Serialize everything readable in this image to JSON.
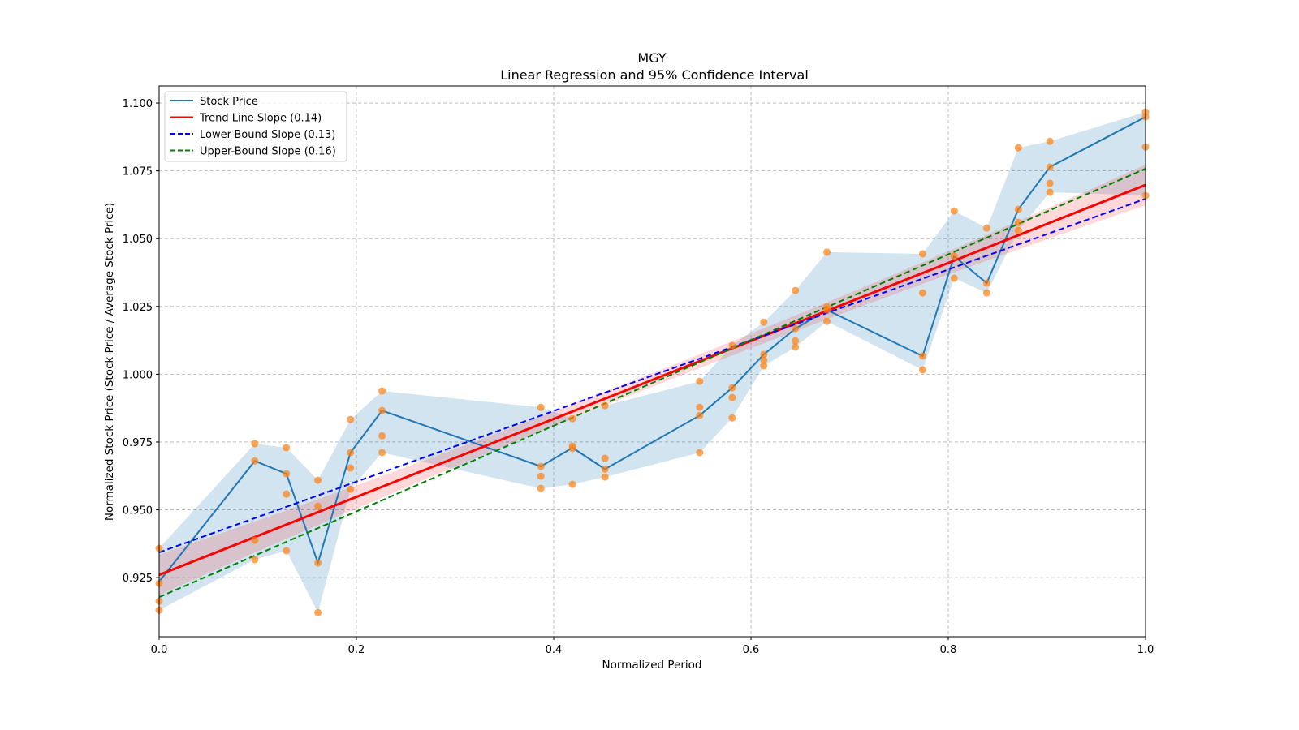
{
  "chart_data": {
    "type": "line",
    "title": "MGY",
    "subtitle": "Linear Regression and 95% Confidence Interval",
    "xlabel": "Normalized Period",
    "ylabel": "Normalized Stock Price (Stock Price / Average Stock Price)",
    "xlim": [
      0,
      1
    ],
    "ylim": [
      0.9032,
      1.1063
    ],
    "xticks": [
      0,
      0.2,
      0.4,
      0.6,
      0.8,
      1.0
    ],
    "xtick_labels": [
      "0.0",
      "0.2",
      "0.4",
      "0.6",
      "0.8",
      "1.0"
    ],
    "yticks": [
      0.925,
      0.95,
      0.975,
      1.0,
      1.025,
      1.05,
      1.075,
      1.1
    ],
    "ytick_labels": [
      "0.925",
      "0.950",
      "0.975",
      "1.000",
      "1.025",
      "1.050",
      "1.075",
      "1.100"
    ],
    "grid": true,
    "legend_position": "top-left",
    "legend": [
      {
        "label": "Stock Price",
        "color": "#1f77b4",
        "style": "solid"
      },
      {
        "label": "Trend Line Slope (0.14)",
        "color": "#ff0000",
        "style": "solid"
      },
      {
        "label": "Lower-Bound Slope (0.13)",
        "color": "#0000ff",
        "style": "dashed"
      },
      {
        "label": "Upper-Bound Slope (0.16)",
        "color": "#008000",
        "style": "dashed"
      }
    ],
    "stock_price": {
      "x": [
        0,
        0.097,
        0.129,
        0.161,
        0.194,
        0.226,
        0.387,
        0.419,
        0.452,
        0.548,
        0.581,
        0.613,
        0.645,
        0.677,
        0.774,
        0.806,
        0.839,
        0.871,
        0.903,
        1.0
      ],
      "y": [
        0.9235,
        0.968,
        0.9633,
        0.9304,
        0.9711,
        0.9866,
        0.966,
        0.9729,
        0.965,
        0.9848,
        0.995,
        1.0073,
        1.0168,
        1.0237,
        1.0067,
        1.0435,
        1.0336,
        1.0608,
        1.0764,
        1.0949
      ]
    },
    "scatter": [
      {
        "x": 0,
        "y": [
          0.9358,
          0.9229,
          0.9163,
          0.913
        ]
      },
      {
        "x": 0.097,
        "y": [
          0.9744,
          0.968,
          0.9388,
          0.9316
        ]
      },
      {
        "x": 0.129,
        "y": [
          0.9729,
          0.9633,
          0.9558,
          0.9349
        ]
      },
      {
        "x": 0.161,
        "y": [
          0.9609,
          0.9513,
          0.9304,
          0.9121
        ]
      },
      {
        "x": 0.194,
        "y": [
          0.9833,
          0.9711,
          0.9654,
          0.9576
        ]
      },
      {
        "x": 0.226,
        "y": [
          0.9938,
          0.9866,
          0.9773,
          0.9711
        ]
      },
      {
        "x": 0.387,
        "y": [
          0.9878,
          0.966,
          0.9624,
          0.9579
        ]
      },
      {
        "x": 0.419,
        "y": [
          0.9836,
          0.9735,
          0.9726,
          0.9594
        ]
      },
      {
        "x": 0.452,
        "y": [
          0.9884,
          0.969,
          0.965,
          0.9621
        ]
      },
      {
        "x": 0.548,
        "y": [
          0.9974,
          0.9878,
          0.9848,
          0.9711
        ]
      },
      {
        "x": 0.581,
        "y": [
          1.0106,
          0.995,
          0.9914,
          0.9839
        ]
      },
      {
        "x": 0.613,
        "y": [
          1.0192,
          1.0073,
          1.0052,
          1.0031
        ]
      },
      {
        "x": 0.645,
        "y": [
          1.0309,
          1.0168,
          1.0123,
          1.01
        ]
      },
      {
        "x": 0.677,
        "y": [
          1.045,
          1.0249,
          1.0237,
          1.0195
        ]
      },
      {
        "x": 0.774,
        "y": [
          1.0444,
          1.03,
          1.0067,
          1.0016
        ]
      },
      {
        "x": 0.806,
        "y": [
          1.0602,
          1.0435,
          1.0354
        ]
      },
      {
        "x": 0.839,
        "y": [
          1.0539,
          1.0336,
          1.03
        ]
      },
      {
        "x": 0.871,
        "y": [
          1.0835,
          1.0608,
          1.056,
          1.053
        ]
      },
      {
        "x": 0.903,
        "y": [
          1.0859,
          1.0764,
          1.0704,
          1.0671
        ]
      },
      {
        "x": 1.0,
        "y": [
          1.0967,
          1.0949,
          1.0838,
          1.0659
        ]
      }
    ],
    "trend_line": {
      "y_at_0": 0.926,
      "y_at_1": 1.0698
    },
    "lower_bound_line": {
      "y_at_0": 0.9343,
      "y_at_1": 1.0647
    },
    "upper_bound_line": {
      "y_at_0": 0.9178,
      "y_at_1": 1.0758
    },
    "colors": {
      "band_stock": "#1f77b4",
      "band_trend": "#ff0000",
      "scatter": "#ff7f0e",
      "grid": "#b0b0b0"
    }
  }
}
